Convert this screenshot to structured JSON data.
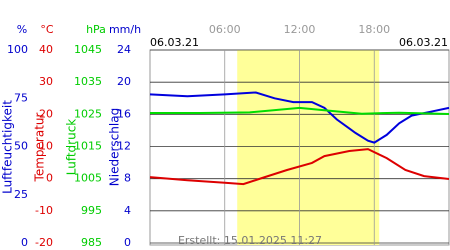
{
  "chart_data": {
    "type": "line",
    "dates": [
      "06.03.21",
      "06.03.21"
    ],
    "footer": "Erstellt: 15.01.2025 11:27",
    "xlim": [
      0,
      24
    ],
    "xticks": [
      {
        "value": 6,
        "label": "06:00"
      },
      {
        "value": 12,
        "label": "12:00"
      },
      {
        "value": 18,
        "label": "18:00"
      }
    ],
    "daylight": [
      7,
      18.4
    ],
    "grid": true,
    "axes": [
      {
        "unit": "%",
        "title": "Luftfeuchtigkeit",
        "color": "#0000cc",
        "ylim": [
          0,
          100
        ],
        "yticks": [
          0,
          25,
          50,
          75,
          100
        ]
      },
      {
        "unit": "°C",
        "title": "Temperatur",
        "color": "#dd0000",
        "ylim": [
          -20,
          40
        ],
        "yticks": [
          -20,
          -10,
          0,
          10,
          20,
          30,
          40
        ]
      },
      {
        "unit": "hPa",
        "title": "Luftdruck",
        "color": "#00cc00",
        "ylim": [
          985,
          1045
        ],
        "yticks": [
          985,
          995,
          1005,
          1015,
          1025,
          1035,
          1045
        ]
      },
      {
        "unit": "mm/h",
        "title": "Niederschlag",
        "color": "#0000cc",
        "ylim": [
          0,
          24
        ],
        "yticks": [
          0,
          4,
          8,
          12,
          16,
          20,
          24
        ]
      }
    ],
    "series": [
      {
        "axis": 0,
        "color": "#0000dd",
        "x": [
          0,
          3,
          6,
          8.5,
          10,
          11.5,
          13,
          14,
          15,
          16.5,
          17.5,
          18,
          19,
          20,
          21,
          22.5,
          24
        ],
        "values": [
          77,
          76,
          77,
          78,
          75,
          73,
          73,
          70,
          64,
          57,
          53,
          52,
          56,
          62,
          66,
          68,
          70
        ]
      },
      {
        "axis": 2,
        "color": "#00dd00",
        "x": [
          0,
          4,
          8,
          12,
          14,
          17,
          20,
          24
        ],
        "values": [
          1025.4,
          1025.4,
          1025.6,
          1027,
          1026.3,
          1025.2,
          1025.5,
          1025.1
        ]
      },
      {
        "axis": 1,
        "color": "#dd0000",
        "x": [
          0,
          3,
          6,
          7.5,
          9,
          11,
          13,
          14,
          16,
          17.5,
          19,
          20.5,
          22,
          24
        ],
        "values": [
          0.5,
          -0.5,
          -1.3,
          -1.7,
          0.2,
          2.7,
          4.9,
          7,
          8.6,
          9.2,
          6.4,
          2.7,
          0.8,
          -0.1
        ]
      }
    ]
  }
}
